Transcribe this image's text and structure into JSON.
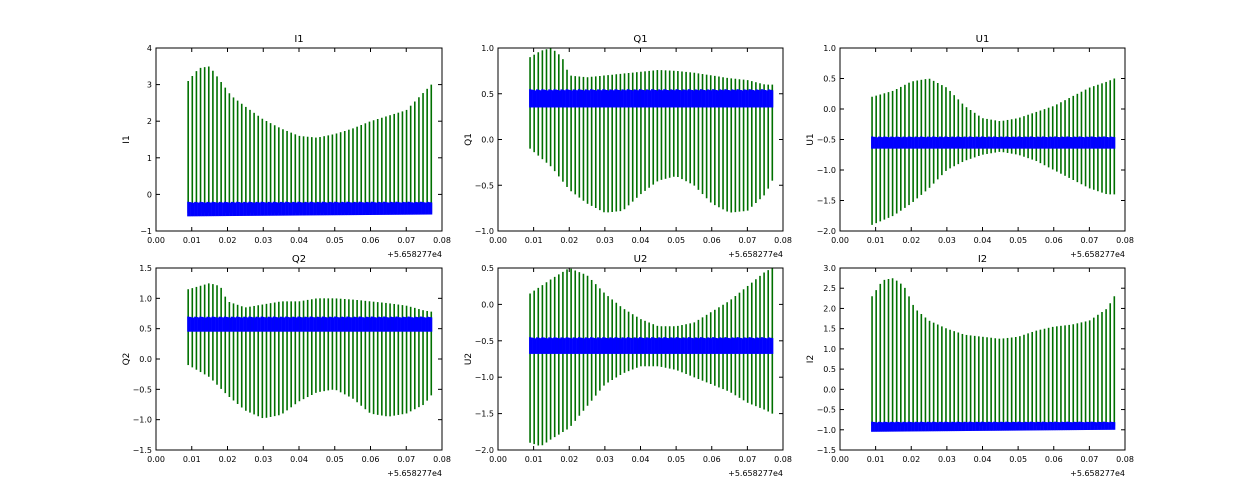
{
  "colors": {
    "series_a": "#007000",
    "series_b": "#0000ff",
    "axes": "#000000",
    "background": "#ffffff"
  },
  "chart_data": [
    {
      "type": "line",
      "title": "I1",
      "ylabel": "I1",
      "xlim": [
        0.0,
        0.08
      ],
      "ylim": [
        -1,
        4
      ],
      "x_ticks": [
        0.0,
        0.01,
        0.02,
        0.03,
        0.04,
        0.05,
        0.06,
        0.07,
        0.08
      ],
      "x_tick_labels": [
        "0.00",
        "0.01",
        "0.02",
        "0.03",
        "0.04",
        "0.05",
        "0.06",
        "0.07",
        "0.08"
      ],
      "y_ticks": [
        -1,
        0,
        1,
        2,
        3,
        4
      ],
      "y_tick_labels": [
        "−1",
        "0",
        "1",
        "2",
        "3",
        "4"
      ],
      "x_offset_label": "+5.658277e4",
      "x_range": [
        0.009,
        0.077
      ],
      "series": [
        {
          "name": "green",
          "color": "#007000",
          "kind": "vertical-lines",
          "tops_x": [
            0.009,
            0.012,
            0.015,
            0.018,
            0.021,
            0.025,
            0.03,
            0.035,
            0.04,
            0.045,
            0.05,
            0.055,
            0.06,
            0.065,
            0.07,
            0.075,
            0.077
          ],
          "tops": [
            3.1,
            3.45,
            3.5,
            3.1,
            2.7,
            2.4,
            2.05,
            1.8,
            1.6,
            1.55,
            1.65,
            1.8,
            2.0,
            2.15,
            2.3,
            2.8,
            3.0
          ],
          "bottoms_x": [
            0.009,
            0.077
          ],
          "bottoms": [
            -0.5,
            -0.5
          ]
        },
        {
          "name": "blue",
          "color": "#0000ff",
          "kind": "band",
          "band_x": [
            0.009,
            0.077
          ],
          "band_low": [
            -0.6,
            -0.55
          ],
          "band_high": [
            -0.2,
            -0.2
          ]
        }
      ]
    },
    {
      "type": "line",
      "title": "Q1",
      "ylabel": "Q1",
      "xlim": [
        0.0,
        0.08
      ],
      "ylim": [
        -1.0,
        1.0
      ],
      "x_ticks": [
        0.0,
        0.01,
        0.02,
        0.03,
        0.04,
        0.05,
        0.06,
        0.07,
        0.08
      ],
      "x_tick_labels": [
        "0.00",
        "0.01",
        "0.02",
        "0.03",
        "0.04",
        "0.05",
        "0.06",
        "0.07",
        "0.08"
      ],
      "y_ticks": [
        -1.0,
        -0.5,
        0.0,
        0.5,
        1.0
      ],
      "y_tick_labels": [
        "−1.0",
        "−0.5",
        "0.0",
        "0.5",
        "1.0"
      ],
      "x_offset_label": "+5.658277e4",
      "x_range": [
        0.009,
        0.077
      ],
      "series": [
        {
          "name": "green",
          "color": "#007000",
          "kind": "vertical-lines",
          "tops_x": [
            0.009,
            0.012,
            0.015,
            0.018,
            0.02,
            0.025,
            0.03,
            0.035,
            0.04,
            0.045,
            0.05,
            0.055,
            0.06,
            0.065,
            0.07,
            0.075,
            0.077
          ],
          "tops": [
            0.9,
            0.97,
            1.0,
            0.9,
            0.7,
            0.68,
            0.7,
            0.72,
            0.74,
            0.76,
            0.75,
            0.73,
            0.7,
            0.67,
            0.65,
            0.6,
            0.6
          ],
          "bottoms_x": [
            0.009,
            0.015,
            0.02,
            0.025,
            0.03,
            0.035,
            0.04,
            0.045,
            0.05,
            0.055,
            0.06,
            0.065,
            0.07,
            0.075,
            0.077
          ],
          "bottoms": [
            -0.1,
            -0.3,
            -0.55,
            -0.7,
            -0.8,
            -0.78,
            -0.6,
            -0.45,
            -0.4,
            -0.5,
            -0.7,
            -0.8,
            -0.78,
            -0.6,
            -0.45
          ]
        },
        {
          "name": "blue",
          "color": "#0000ff",
          "kind": "band",
          "band_x": [
            0.009,
            0.077
          ],
          "band_low": [
            0.35,
            0.35
          ],
          "band_high": [
            0.55,
            0.55
          ]
        }
      ]
    },
    {
      "type": "line",
      "title": "U1",
      "ylabel": "U1",
      "xlim": [
        0.0,
        0.08
      ],
      "ylim": [
        -2.0,
        1.0
      ],
      "x_ticks": [
        0.0,
        0.01,
        0.02,
        0.03,
        0.04,
        0.05,
        0.06,
        0.07,
        0.08
      ],
      "x_tick_labels": [
        "0.00",
        "0.01",
        "0.02",
        "0.03",
        "0.04",
        "0.05",
        "0.06",
        "0.07",
        "0.08"
      ],
      "y_ticks": [
        -2.0,
        -1.5,
        -1.0,
        -0.5,
        0.0,
        0.5,
        1.0
      ],
      "y_tick_labels": [
        "−2.0",
        "−1.5",
        "−1.0",
        "−0.5",
        "0.0",
        "0.5",
        "1.0"
      ],
      "x_offset_label": "+5.658277e4",
      "x_range": [
        0.009,
        0.077
      ],
      "series": [
        {
          "name": "green",
          "color": "#007000",
          "kind": "vertical-lines",
          "tops_x": [
            0.009,
            0.015,
            0.02,
            0.025,
            0.03,
            0.035,
            0.04,
            0.045,
            0.05,
            0.055,
            0.06,
            0.065,
            0.07,
            0.075,
            0.077
          ],
          "tops": [
            0.2,
            0.3,
            0.45,
            0.5,
            0.35,
            0.05,
            -0.15,
            -0.2,
            -0.15,
            -0.05,
            0.05,
            0.2,
            0.35,
            0.45,
            0.5
          ],
          "bottoms_x": [
            0.009,
            0.015,
            0.02,
            0.025,
            0.03,
            0.035,
            0.04,
            0.045,
            0.05,
            0.055,
            0.06,
            0.065,
            0.07,
            0.075,
            0.077
          ],
          "bottoms": [
            -1.9,
            -1.75,
            -1.55,
            -1.3,
            -1.0,
            -0.85,
            -0.75,
            -0.7,
            -0.75,
            -0.85,
            -1.0,
            -1.15,
            -1.3,
            -1.4,
            -1.4
          ]
        },
        {
          "name": "blue",
          "color": "#0000ff",
          "kind": "band",
          "band_x": [
            0.009,
            0.077
          ],
          "band_low": [
            -0.65,
            -0.65
          ],
          "band_high": [
            -0.45,
            -0.45
          ]
        }
      ]
    },
    {
      "type": "line",
      "title": "Q2",
      "ylabel": "Q2",
      "xlim": [
        0.0,
        0.08
      ],
      "ylim": [
        -1.5,
        1.5
      ],
      "x_ticks": [
        0.0,
        0.01,
        0.02,
        0.03,
        0.04,
        0.05,
        0.06,
        0.07,
        0.08
      ],
      "x_tick_labels": [
        "0.00",
        "0.01",
        "0.02",
        "0.03",
        "0.04",
        "0.05",
        "0.06",
        "0.07",
        "0.08"
      ],
      "y_ticks": [
        -1.5,
        -1.0,
        -0.5,
        0.0,
        0.5,
        1.0,
        1.5
      ],
      "y_tick_labels": [
        "−1.5",
        "−1.0",
        "−0.5",
        "0.0",
        "0.5",
        "1.0",
        "1.5"
      ],
      "x_offset_label": "+5.658277e4",
      "x_range": [
        0.009,
        0.077
      ],
      "series": [
        {
          "name": "green",
          "color": "#007000",
          "kind": "vertical-lines",
          "tops_x": [
            0.009,
            0.012,
            0.015,
            0.018,
            0.02,
            0.025,
            0.03,
            0.035,
            0.04,
            0.045,
            0.05,
            0.055,
            0.06,
            0.065,
            0.07,
            0.075,
            0.077
          ],
          "tops": [
            1.15,
            1.2,
            1.25,
            1.2,
            0.95,
            0.85,
            0.9,
            0.95,
            0.95,
            1.0,
            1.0,
            0.98,
            0.95,
            0.92,
            0.88,
            0.8,
            0.78
          ],
          "bottoms_x": [
            0.009,
            0.015,
            0.02,
            0.025,
            0.03,
            0.035,
            0.04,
            0.045,
            0.05,
            0.055,
            0.06,
            0.065,
            0.07,
            0.075,
            0.077
          ],
          "bottoms": [
            -0.1,
            -0.3,
            -0.6,
            -0.85,
            -0.98,
            -0.92,
            -0.7,
            -0.55,
            -0.5,
            -0.65,
            -0.9,
            -0.95,
            -0.9,
            -0.75,
            -0.6
          ]
        },
        {
          "name": "blue",
          "color": "#0000ff",
          "kind": "band",
          "band_x": [
            0.009,
            0.077
          ],
          "band_low": [
            0.45,
            0.45
          ],
          "band_high": [
            0.7,
            0.7
          ]
        }
      ]
    },
    {
      "type": "line",
      "title": "U2",
      "ylabel": "U2",
      "xlim": [
        0.0,
        0.08
      ],
      "ylim": [
        -2.0,
        0.5
      ],
      "x_ticks": [
        0.0,
        0.01,
        0.02,
        0.03,
        0.04,
        0.05,
        0.06,
        0.07,
        0.08
      ],
      "x_tick_labels": [
        "0.00",
        "0.01",
        "0.02",
        "0.03",
        "0.04",
        "0.05",
        "0.06",
        "0.07",
        "0.08"
      ],
      "y_ticks": [
        -2.0,
        -1.5,
        -1.0,
        -0.5,
        0.0,
        0.5
      ],
      "y_tick_labels": [
        "−2.0",
        "−1.5",
        "−1.0",
        "−0.5",
        "0.0",
        "0.5"
      ],
      "x_offset_label": "+5.658277e4",
      "x_range": [
        0.009,
        0.077
      ],
      "series": [
        {
          "name": "green",
          "color": "#007000",
          "kind": "vertical-lines",
          "tops_x": [
            0.009,
            0.015,
            0.02,
            0.025,
            0.03,
            0.035,
            0.04,
            0.045,
            0.05,
            0.055,
            0.06,
            0.065,
            0.07,
            0.075,
            0.077
          ],
          "tops": [
            0.15,
            0.35,
            0.5,
            0.4,
            0.15,
            -0.05,
            -0.2,
            -0.3,
            -0.3,
            -0.25,
            -0.1,
            0.05,
            0.25,
            0.45,
            0.5
          ],
          "bottoms_x": [
            0.009,
            0.012,
            0.015,
            0.02,
            0.025,
            0.03,
            0.035,
            0.04,
            0.045,
            0.05,
            0.055,
            0.06,
            0.065,
            0.07,
            0.075,
            0.077
          ],
          "bottoms": [
            -1.9,
            -1.95,
            -1.85,
            -1.7,
            -1.4,
            -1.1,
            -0.95,
            -0.85,
            -0.85,
            -0.9,
            -1.0,
            -1.1,
            -1.2,
            -1.35,
            -1.45,
            -1.5
          ]
        },
        {
          "name": "blue",
          "color": "#0000ff",
          "kind": "band",
          "band_x": [
            0.009,
            0.077
          ],
          "band_low": [
            -0.68,
            -0.68
          ],
          "band_high": [
            -0.45,
            -0.45
          ]
        }
      ]
    },
    {
      "type": "line",
      "title": "I2",
      "ylabel": "I2",
      "xlim": [
        0.0,
        0.08
      ],
      "ylim": [
        -1.5,
        3.0
      ],
      "x_ticks": [
        0.0,
        0.01,
        0.02,
        0.03,
        0.04,
        0.05,
        0.06,
        0.07,
        0.08
      ],
      "x_tick_labels": [
        "0.00",
        "0.01",
        "0.02",
        "0.03",
        "0.04",
        "0.05",
        "0.06",
        "0.07",
        "0.08"
      ],
      "y_ticks": [
        -1.5,
        -1.0,
        -0.5,
        0.0,
        0.5,
        1.0,
        1.5,
        2.0,
        2.5,
        3.0
      ],
      "y_tick_labels": [
        "−1.5",
        "−1.0",
        "−0.5",
        "0.0",
        "0.5",
        "1.0",
        "1.5",
        "2.0",
        "2.5",
        "3.0"
      ],
      "x_offset_label": "+5.658277e4",
      "x_range": [
        0.009,
        0.077
      ],
      "series": [
        {
          "name": "green",
          "color": "#007000",
          "kind": "vertical-lines",
          "tops_x": [
            0.009,
            0.012,
            0.015,
            0.018,
            0.021,
            0.025,
            0.03,
            0.035,
            0.04,
            0.045,
            0.05,
            0.055,
            0.06,
            0.065,
            0.07,
            0.075,
            0.077
          ],
          "tops": [
            2.3,
            2.7,
            2.75,
            2.55,
            2.0,
            1.7,
            1.5,
            1.35,
            1.3,
            1.25,
            1.3,
            1.45,
            1.55,
            1.6,
            1.7,
            2.0,
            2.3
          ],
          "bottoms_x": [
            0.009,
            0.077
          ],
          "bottoms": [
            -0.9,
            -0.9
          ]
        },
        {
          "name": "blue",
          "color": "#0000ff",
          "kind": "band",
          "band_x": [
            0.009,
            0.077
          ],
          "band_low": [
            -1.05,
            -1.0
          ],
          "band_high": [
            -0.8,
            -0.8
          ]
        }
      ]
    }
  ]
}
